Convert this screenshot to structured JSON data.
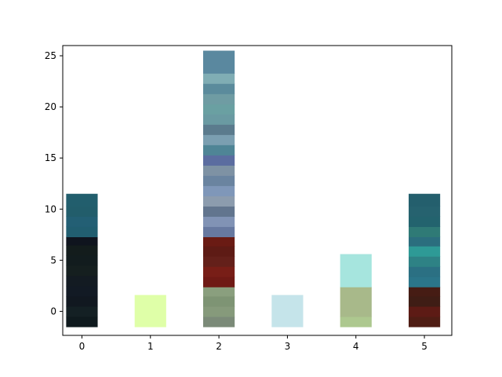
{
  "chart_data": {
    "type": "bar",
    "title": "",
    "xlabel": "",
    "ylabel": "",
    "xlim": [
      -0.28,
      5.4
    ],
    "ylim": [
      -2.35,
      26.0
    ],
    "x_ticks": [
      0,
      1,
      2,
      3,
      4,
      5
    ],
    "y_ticks": [
      0,
      5,
      10,
      15,
      20,
      25
    ],
    "grid": false,
    "legend": "none",
    "bar_width": 0.46,
    "bars": [
      {
        "x": 0,
        "segments": [
          {
            "y0": -1.5,
            "y1": -0.5,
            "color": "#0f1a1e"
          },
          {
            "y0": -0.5,
            "y1": 0.5,
            "color": "#142024"
          },
          {
            "y0": 0.5,
            "y1": 1.5,
            "color": "#111820"
          },
          {
            "y0": 1.5,
            "y1": 2.5,
            "color": "#121a24"
          },
          {
            "y0": 2.5,
            "y1": 3.5,
            "color": "#131b22"
          },
          {
            "y0": 3.5,
            "y1": 4.5,
            "color": "#151f1f"
          },
          {
            "y0": 4.5,
            "y1": 5.5,
            "color": "#121c1e"
          },
          {
            "y0": 5.5,
            "y1": 6.5,
            "color": "#131c1c"
          },
          {
            "y0": 6.5,
            "y1": 7.3,
            "color": "#0f141e"
          },
          {
            "y0": 7.3,
            "y1": 8.3,
            "color": "#215e70"
          },
          {
            "y0": 8.3,
            "y1": 9.3,
            "color": "#235f74"
          },
          {
            "y0": 9.3,
            "y1": 10.3,
            "color": "#225d6b"
          },
          {
            "y0": 10.3,
            "y1": 11.5,
            "color": "#225e6d"
          }
        ]
      },
      {
        "x": 1,
        "segments": [
          {
            "y0": -1.5,
            "y1": 1.6,
            "color": "#dfffa8"
          }
        ]
      },
      {
        "x": 2,
        "segments": [
          {
            "y0": -1.5,
            "y1": -0.5,
            "color": "#7b8a78"
          },
          {
            "y0": -0.5,
            "y1": 0.5,
            "color": "#869a7b"
          },
          {
            "y0": 0.5,
            "y1": 1.5,
            "color": "#7e9474"
          },
          {
            "y0": 1.5,
            "y1": 2.4,
            "color": "#8a9f7e"
          },
          {
            "y0": 2.4,
            "y1": 3.4,
            "color": "#6f1a15"
          },
          {
            "y0": 3.4,
            "y1": 4.4,
            "color": "#781e17"
          },
          {
            "y0": 4.4,
            "y1": 5.4,
            "color": "#64201a"
          },
          {
            "y0": 5.4,
            "y1": 6.4,
            "color": "#5e1b15"
          },
          {
            "y0": 6.4,
            "y1": 7.3,
            "color": "#6a1b14"
          },
          {
            "y0": 7.3,
            "y1": 8.3,
            "color": "#6779a0"
          },
          {
            "y0": 8.3,
            "y1": 9.3,
            "color": "#8193b5"
          },
          {
            "y0": 9.3,
            "y1": 10.3,
            "color": "#62758e"
          },
          {
            "y0": 10.3,
            "y1": 11.3,
            "color": "#8c9cae"
          },
          {
            "y0": 11.3,
            "y1": 12.3,
            "color": "#7f97b9"
          },
          {
            "y0": 12.3,
            "y1": 13.3,
            "color": "#6a84a0"
          },
          {
            "y0": 13.3,
            "y1": 14.3,
            "color": "#7e92a4"
          },
          {
            "y0": 14.3,
            "y1": 15.3,
            "color": "#5b6da0"
          },
          {
            "y0": 15.3,
            "y1": 16.3,
            "color": "#4f8596"
          },
          {
            "y0": 16.3,
            "y1": 17.3,
            "color": "#7b9fb1"
          },
          {
            "y0": 17.3,
            "y1": 18.3,
            "color": "#5b7b8d"
          },
          {
            "y0": 18.3,
            "y1": 19.3,
            "color": "#6a9aa2"
          },
          {
            "y0": 19.3,
            "y1": 20.3,
            "color": "#6aa0a2"
          },
          {
            "y0": 20.3,
            "y1": 21.3,
            "color": "#6f9ca3"
          },
          {
            "y0": 21.3,
            "y1": 22.3,
            "color": "#5b8b9c"
          },
          {
            "y0": 22.3,
            "y1": 23.3,
            "color": "#80adb4"
          },
          {
            "y0": 23.3,
            "y1": 25.5,
            "color": "#5a889f"
          }
        ]
      },
      {
        "x": 3,
        "segments": [
          {
            "y0": -1.5,
            "y1": 1.6,
            "color": "#c5e4ea"
          }
        ]
      },
      {
        "x": 4,
        "segments": [
          {
            "y0": -1.5,
            "y1": -0.5,
            "color": "#adc88f"
          },
          {
            "y0": -0.5,
            "y1": 2.4,
            "color": "#a8b98a"
          },
          {
            "y0": 2.4,
            "y1": 5.6,
            "color": "#a6e5de"
          }
        ]
      },
      {
        "x": 5,
        "segments": [
          {
            "y0": -1.5,
            "y1": -0.5,
            "color": "#4f1d14"
          },
          {
            "y0": -0.5,
            "y1": 0.5,
            "color": "#5d1b15"
          },
          {
            "y0": 0.5,
            "y1": 1.5,
            "color": "#3f1d15"
          },
          {
            "y0": 1.5,
            "y1": 2.4,
            "color": "#461c14"
          },
          {
            "y0": 2.4,
            "y1": 3.4,
            "color": "#2b7589"
          },
          {
            "y0": 3.4,
            "y1": 4.4,
            "color": "#2b7083"
          },
          {
            "y0": 4.4,
            "y1": 5.4,
            "color": "#2e8285"
          },
          {
            "y0": 5.4,
            "y1": 6.4,
            "color": "#2e9a96"
          },
          {
            "y0": 6.4,
            "y1": 7.3,
            "color": "#2b6e7e"
          },
          {
            "y0": 7.3,
            "y1": 8.3,
            "color": "#2f7a76"
          },
          {
            "y0": 8.3,
            "y1": 9.3,
            "color": "#23636e"
          },
          {
            "y0": 9.3,
            "y1": 10.3,
            "color": "#26626f"
          },
          {
            "y0": 10.3,
            "y1": 11.5,
            "color": "#245f6d"
          }
        ]
      }
    ]
  }
}
